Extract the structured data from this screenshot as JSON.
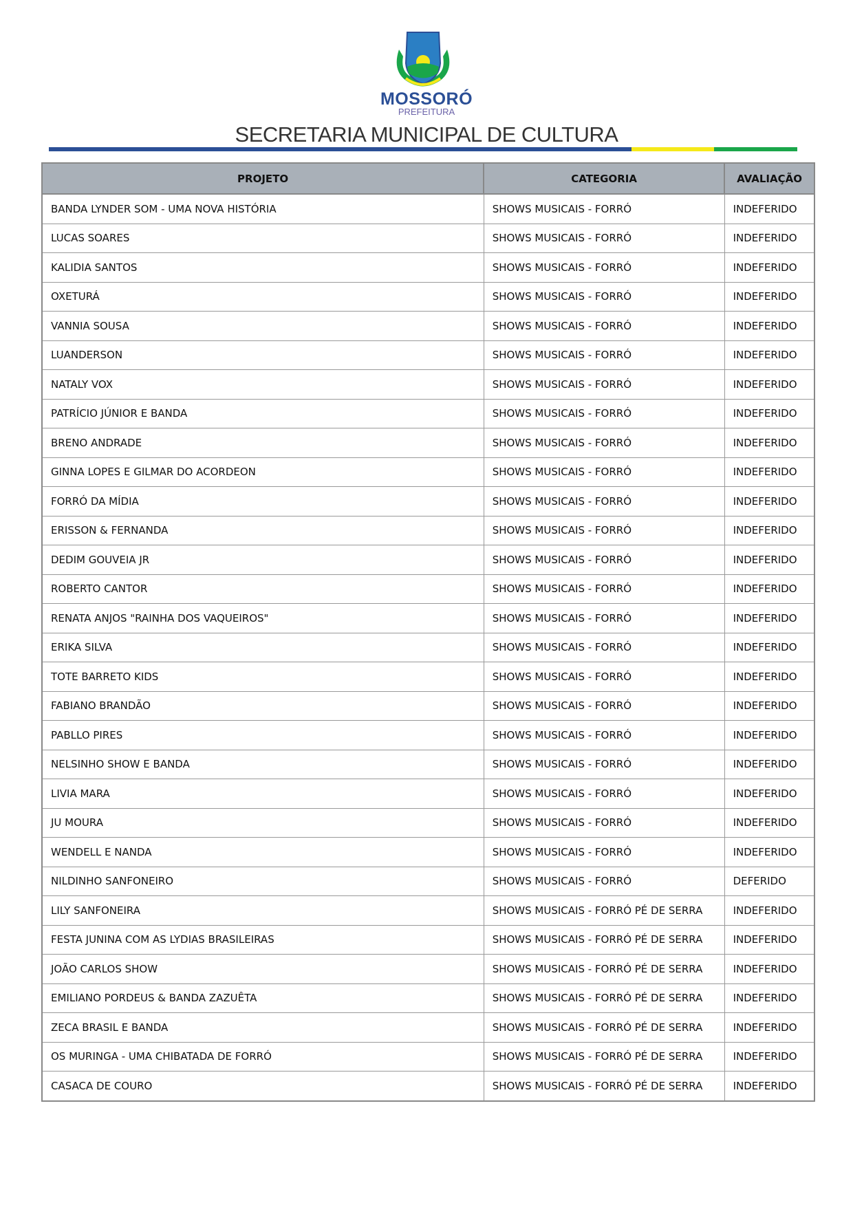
{
  "header": {
    "brand_name": "MOSSORÓ",
    "brand_sub": "PREFEITURA",
    "title": "SECRETARIA MUNICIPAL DE CULTURA",
    "stripe_colors": [
      "#2b4f96",
      "#f5e919",
      "#1aa64a"
    ]
  },
  "table": {
    "columns": [
      "PROJETO",
      "CATEGORIA",
      "AVALIAÇÃO"
    ],
    "rows": [
      [
        "BANDA LYNDER SOM - UMA NOVA HISTÓRIA",
        "SHOWS MUSICAIS - FORRÓ",
        "INDEFERIDO"
      ],
      [
        "LUCAS SOARES",
        "SHOWS MUSICAIS - FORRÓ",
        "INDEFERIDO"
      ],
      [
        "KALIDIA SANTOS",
        "SHOWS MUSICAIS - FORRÓ",
        "INDEFERIDO"
      ],
      [
        "OXETURÁ",
        "SHOWS MUSICAIS - FORRÓ",
        "INDEFERIDO"
      ],
      [
        "VANNIA SOUSA",
        "SHOWS MUSICAIS - FORRÓ",
        "INDEFERIDO"
      ],
      [
        "LUANDERSON",
        "SHOWS MUSICAIS - FORRÓ",
        "INDEFERIDO"
      ],
      [
        "NATALY VOX",
        "SHOWS MUSICAIS - FORRÓ",
        "INDEFERIDO"
      ],
      [
        "PATRÍCIO JÚNIOR E BANDA",
        "SHOWS MUSICAIS - FORRÓ",
        "INDEFERIDO"
      ],
      [
        "BRENO ANDRADE",
        "SHOWS MUSICAIS - FORRÓ",
        "INDEFERIDO"
      ],
      [
        "GINNA LOPES E GILMAR DO ACORDEON",
        "SHOWS MUSICAIS - FORRÓ",
        "INDEFERIDO"
      ],
      [
        "FORRÓ DA MÍDIA",
        "SHOWS MUSICAIS - FORRÓ",
        "INDEFERIDO"
      ],
      [
        "ERISSON & FERNANDA",
        "SHOWS MUSICAIS - FORRÓ",
        "INDEFERIDO"
      ],
      [
        "DEDIM GOUVEIA JR",
        "SHOWS MUSICAIS - FORRÓ",
        "INDEFERIDO"
      ],
      [
        "ROBERTO CANTOR",
        "SHOWS MUSICAIS - FORRÓ",
        "INDEFERIDO"
      ],
      [
        "RENATA ANJOS \"RAINHA DOS VAQUEIROS\"",
        "SHOWS MUSICAIS - FORRÓ",
        "INDEFERIDO"
      ],
      [
        "ERIKA SILVA",
        "SHOWS MUSICAIS - FORRÓ",
        "INDEFERIDO"
      ],
      [
        "TOTE BARRETO KIDS",
        "SHOWS MUSICAIS - FORRÓ",
        "INDEFERIDO"
      ],
      [
        "FABIANO BRANDÃO",
        "SHOWS MUSICAIS - FORRÓ",
        "INDEFERIDO"
      ],
      [
        "PABLLO PIRES",
        "SHOWS MUSICAIS - FORRÓ",
        "INDEFERIDO"
      ],
      [
        "NELSINHO SHOW E BANDA",
        "SHOWS MUSICAIS - FORRÓ",
        "INDEFERIDO"
      ],
      [
        "LIVIA MARA",
        "SHOWS MUSICAIS - FORRÓ",
        "INDEFERIDO"
      ],
      [
        "JU MOURA",
        "SHOWS MUSICAIS - FORRÓ",
        "INDEFERIDO"
      ],
      [
        "WENDELL E NANDA",
        "SHOWS MUSICAIS - FORRÓ",
        "INDEFERIDO"
      ],
      [
        "NILDINHO SANFONEIRO",
        "SHOWS MUSICAIS - FORRÓ",
        "DEFERIDO"
      ],
      [
        "LILY SANFONEIRA",
        "SHOWS MUSICAIS - FORRÓ PÉ DE SERRA",
        "INDEFERIDO"
      ],
      [
        "FESTA JUNINA COM AS LYDIAS BRASILEIRAS",
        "SHOWS MUSICAIS - FORRÓ PÉ DE SERRA",
        "INDEFERIDO"
      ],
      [
        "JOÃO CARLOS SHOW",
        "SHOWS MUSICAIS - FORRÓ PÉ DE SERRA",
        "INDEFERIDO"
      ],
      [
        "EMILIANO PORDEUS & BANDA ZAZUÊTA",
        "SHOWS MUSICAIS - FORRÓ PÉ DE SERRA",
        "INDEFERIDO"
      ],
      [
        "ZECA BRASIL E BANDA",
        "SHOWS MUSICAIS - FORRÓ PÉ DE SERRA",
        "INDEFERIDO"
      ],
      [
        "OS MURINGA - UMA CHIBATADA DE FORRÓ",
        "SHOWS MUSICAIS - FORRÓ PÉ DE SERRA",
        "INDEFERIDO"
      ],
      [
        "CASACA DE COURO",
        "SHOWS MUSICAIS - FORRÓ PÉ DE SERRA",
        "INDEFERIDO"
      ]
    ]
  }
}
